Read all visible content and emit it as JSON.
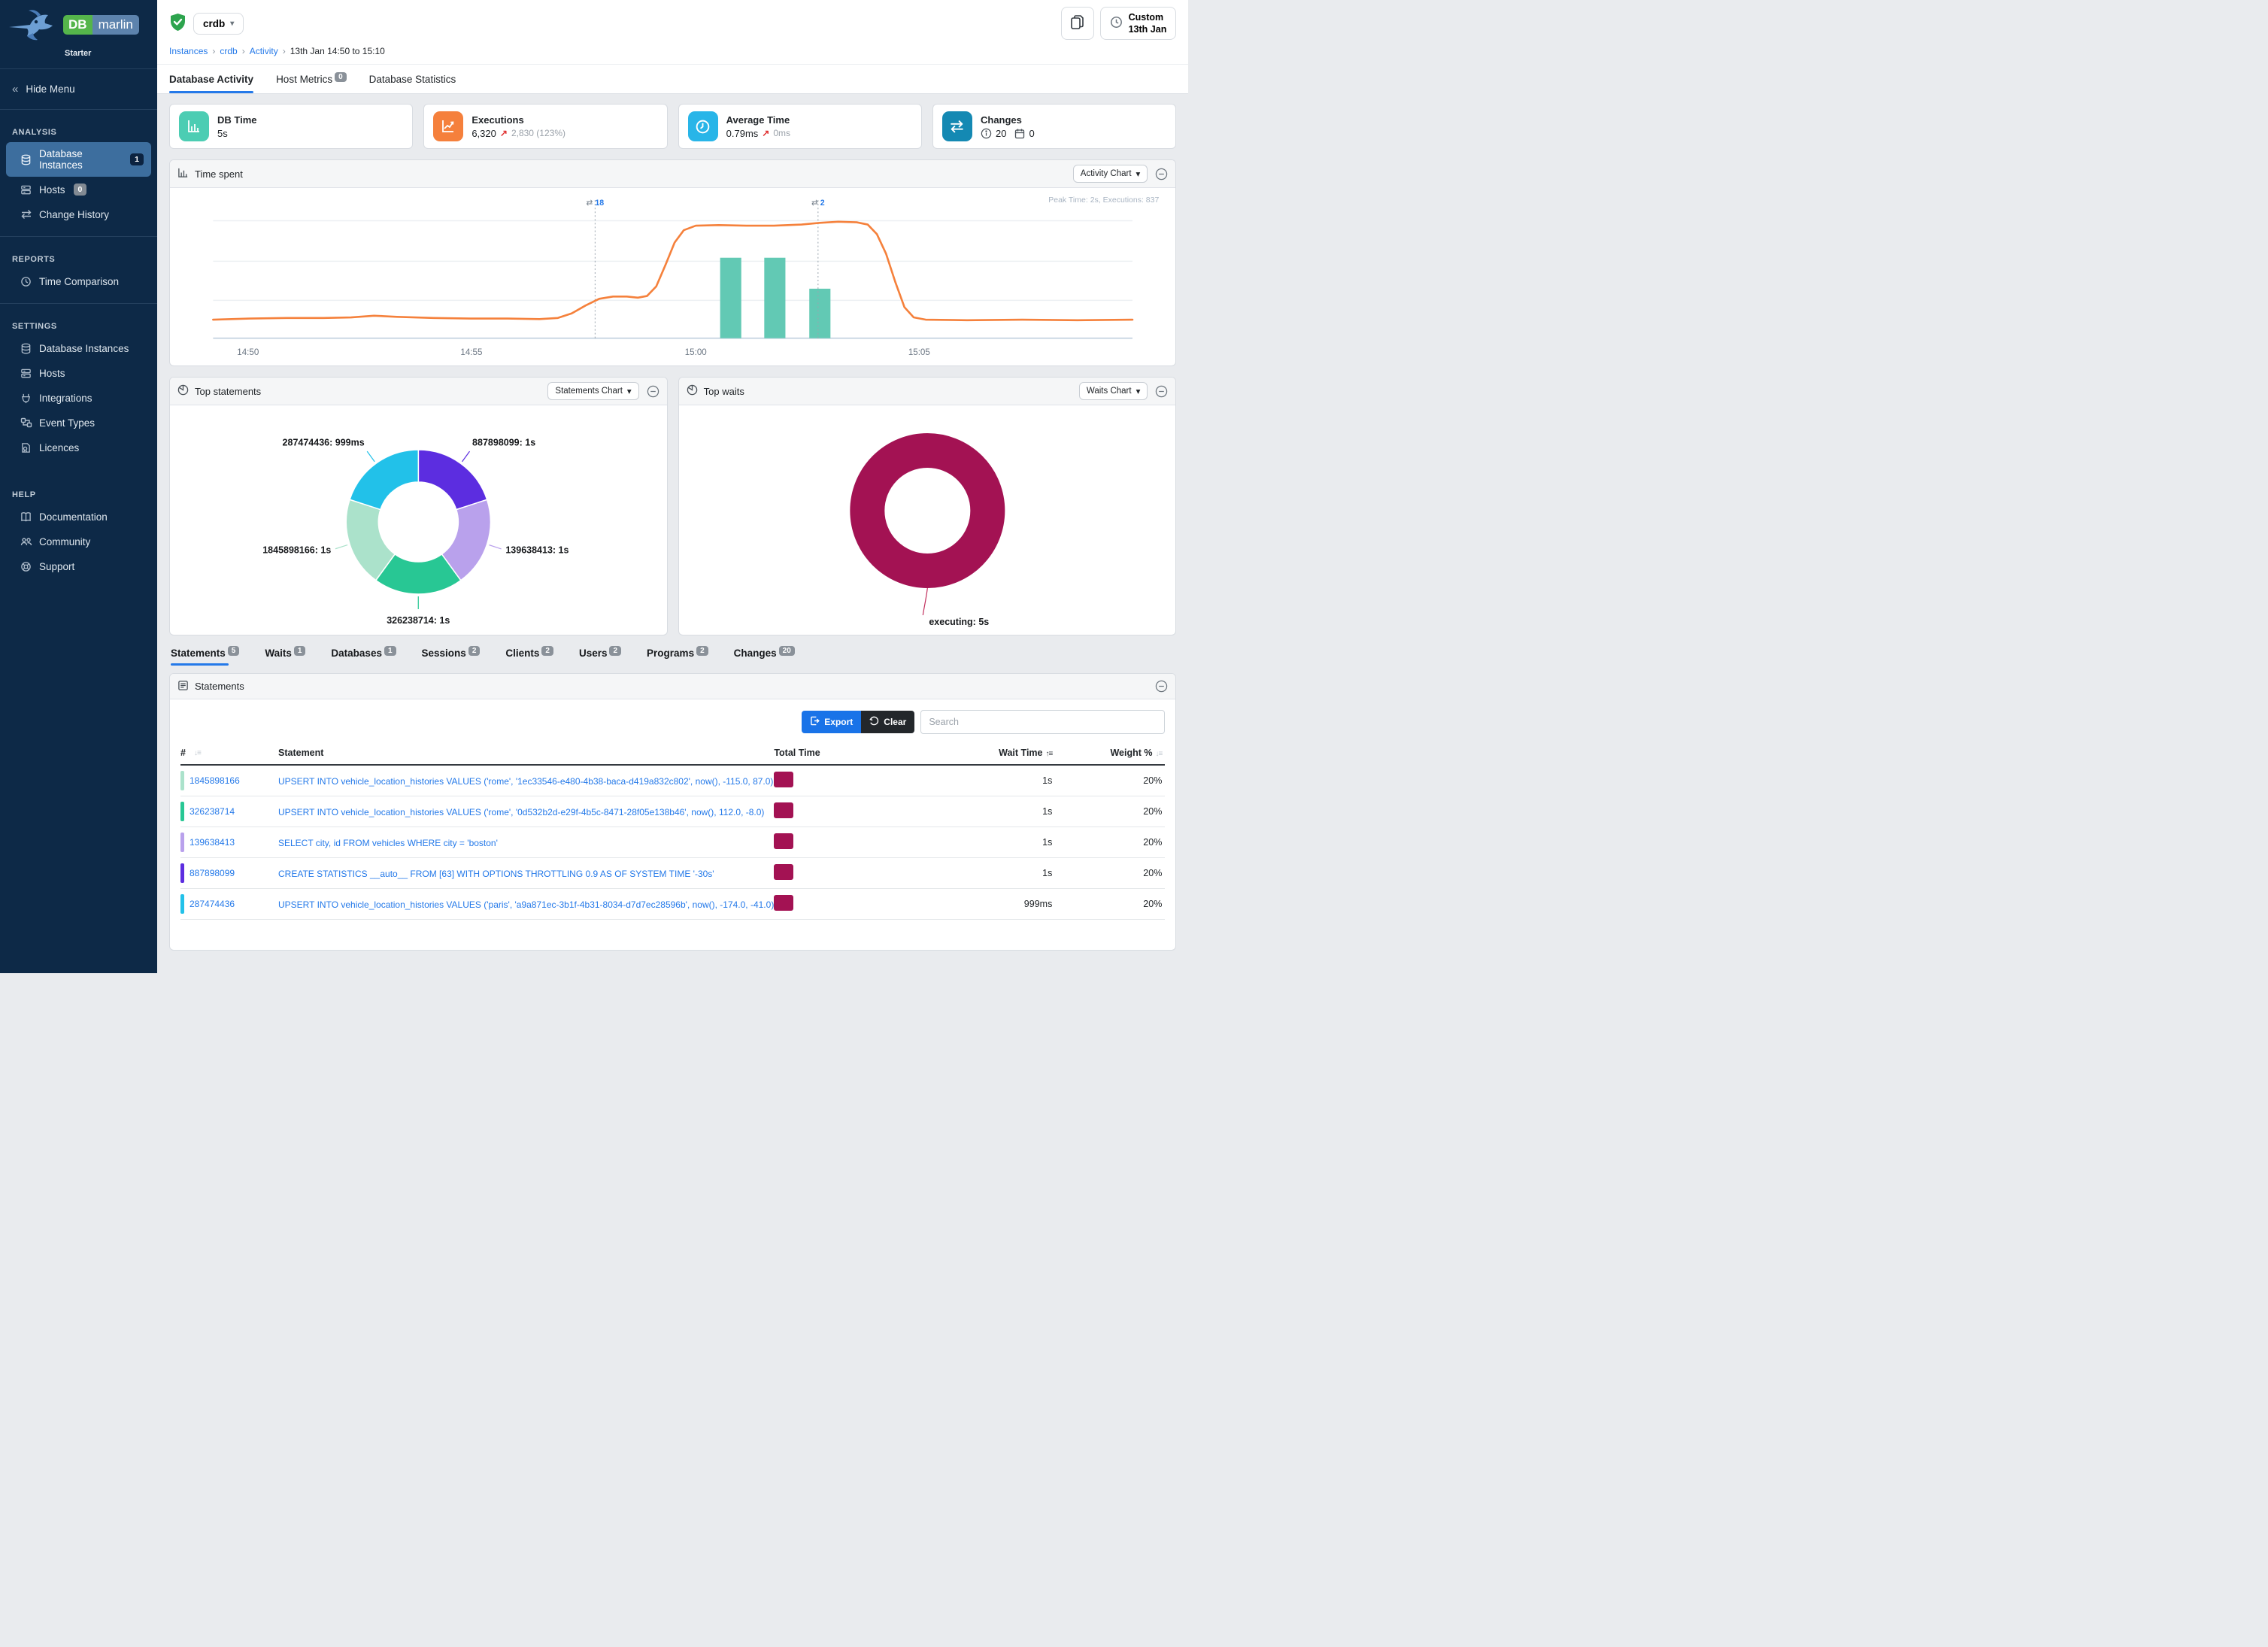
{
  "glyphs": {
    "caret_down": "▾",
    "breadcrumb_sep": "›",
    "up_right_arrow": "↗",
    "double_chevron_left": "«",
    "change_arrows": "⇄",
    "sort_unsorted": "↓≡",
    "sort_asc": "↑≡"
  },
  "sidebar": {
    "logo": {
      "db": "DB",
      "marlin": "marlin",
      "edition": "Starter"
    },
    "hide_menu_label": "Hide Menu",
    "sections": [
      {
        "label": "ANALYSIS",
        "items": [
          {
            "label": "Database Instances",
            "badge": "1",
            "icon": "database-icon",
            "active": true
          },
          {
            "label": "Hosts",
            "badge": "0",
            "icon": "server-icon",
            "active": false
          },
          {
            "label": "Change History",
            "icon": "change-arrows-icon",
            "active": false
          }
        ]
      },
      {
        "label": "REPORTS",
        "items": [
          {
            "label": "Time Comparison",
            "icon": "time-comparison-icon",
            "active": false
          }
        ]
      },
      {
        "label": "SETTINGS",
        "items": [
          {
            "label": "Database Instances",
            "icon": "database-icon",
            "active": false
          },
          {
            "label": "Hosts",
            "icon": "server-icon",
            "active": false
          },
          {
            "label": "Integrations",
            "icon": "plug-icon",
            "active": false
          },
          {
            "label": "Event Types",
            "icon": "event-types-icon",
            "active": false
          },
          {
            "label": "Licences",
            "icon": "licence-icon",
            "active": false
          }
        ]
      },
      {
        "label": "HELP",
        "items": [
          {
            "label": "Documentation",
            "icon": "book-icon",
            "active": false
          },
          {
            "label": "Community",
            "icon": "community-icon",
            "active": false
          },
          {
            "label": "Support",
            "icon": "support-icon",
            "active": false
          }
        ]
      }
    ]
  },
  "header": {
    "instance_name": "crdb",
    "breadcrumb": [
      "Instances",
      "crdb",
      "Activity",
      "13th Jan 14:50 to 15:10"
    ],
    "time_range_button": {
      "line1": "Custom",
      "line2": "13th Jan"
    },
    "tabs": [
      {
        "label": "Database Activity",
        "active": true
      },
      {
        "label": "Host Metrics",
        "badge": "0",
        "active": false
      },
      {
        "label": "Database Statistics",
        "active": false
      }
    ]
  },
  "kpis": [
    {
      "title": "DB Time",
      "value": "5s",
      "icon": "bar-chart-icon",
      "icon_bg": "#4ccdb3"
    },
    {
      "title": "Executions",
      "value": "6,320",
      "delta": "2,830 (123%)",
      "icon": "line-chart-icon",
      "icon_bg": "#f5803c"
    },
    {
      "title": "Average Time",
      "value": "0.79ms",
      "delta": "0ms",
      "icon": "clock-icon",
      "icon_bg": "#28b5e8"
    },
    {
      "title": "Changes",
      "info_count": "20",
      "event_count": "0",
      "icon": "change-arrows-icon",
      "icon_bg": "#1489b3"
    }
  ],
  "panels": {
    "time_spent": {
      "title": "Time spent",
      "chart_selector": "Activity Chart",
      "note": "Peak Time: 2s, Executions: 837"
    },
    "top_statements": {
      "title": "Top statements",
      "chart_selector": "Statements Chart"
    },
    "top_waits": {
      "title": "Top waits",
      "chart_selector": "Waits Chart"
    }
  },
  "chart_data": [
    {
      "type": "line",
      "title": "Time spent",
      "y_max_seconds": 2.4,
      "x_axis": {
        "ticks": [
          "14:50",
          "14:55",
          "15:00",
          "15:05"
        ],
        "tick_positions": [
          0.038,
          0.281,
          0.525,
          0.768
        ]
      },
      "line_series": {
        "name": "DB Time",
        "color": "#f5813c",
        "points": [
          [
            0,
            0.33
          ],
          [
            0.04,
            0.35
          ],
          [
            0.08,
            0.36
          ],
          [
            0.12,
            0.36
          ],
          [
            0.15,
            0.37
          ],
          [
            0.175,
            0.4
          ],
          [
            0.2,
            0.38
          ],
          [
            0.24,
            0.36
          ],
          [
            0.28,
            0.35
          ],
          [
            0.32,
            0.35
          ],
          [
            0.355,
            0.34
          ],
          [
            0.375,
            0.36
          ],
          [
            0.39,
            0.44
          ],
          [
            0.405,
            0.58
          ],
          [
            0.42,
            0.7
          ],
          [
            0.435,
            0.74
          ],
          [
            0.45,
            0.74
          ],
          [
            0.462,
            0.72
          ],
          [
            0.472,
            0.75
          ],
          [
            0.482,
            0.92
          ],
          [
            0.492,
            1.3
          ],
          [
            0.502,
            1.7
          ],
          [
            0.512,
            1.92
          ],
          [
            0.525,
            2.0
          ],
          [
            0.55,
            2.01
          ],
          [
            0.58,
            2.0
          ],
          [
            0.61,
            2.0
          ],
          [
            0.64,
            2.02
          ],
          [
            0.66,
            2.05
          ],
          [
            0.68,
            2.07
          ],
          [
            0.7,
            2.06
          ],
          [
            0.712,
            2.02
          ],
          [
            0.722,
            1.85
          ],
          [
            0.732,
            1.5
          ],
          [
            0.742,
            1.0
          ],
          [
            0.752,
            0.55
          ],
          [
            0.762,
            0.37
          ],
          [
            0.775,
            0.33
          ],
          [
            0.82,
            0.32
          ],
          [
            0.88,
            0.33
          ],
          [
            0.94,
            0.32
          ],
          [
            1,
            0.33
          ]
        ]
      },
      "bar_series": {
        "name": "Executions",
        "color": "#62c9b4",
        "bar_width": 0.023,
        "bars": [
          {
            "x": 0.563,
            "value": 1.43
          },
          {
            "x": 0.611,
            "value": 1.43
          },
          {
            "x": 0.66,
            "value": 0.88
          }
        ]
      },
      "markers": [
        {
          "x": 0.4155,
          "label": "18"
        },
        {
          "x": 0.658,
          "label": "2"
        }
      ],
      "note": "Peak Time: 2s, Executions: 837"
    },
    {
      "type": "pie",
      "title": "Top statements",
      "start_angle_deg": -90,
      "slices": [
        {
          "label": "887898099",
          "value_label": "1s",
          "value_seconds": 1,
          "color": "#5c2de0"
        },
        {
          "label": "139638413",
          "value_label": "1s",
          "value_seconds": 1,
          "color": "#b9a1ec"
        },
        {
          "label": "326238714",
          "value_label": "1s",
          "value_seconds": 1,
          "color": "#28c794"
        },
        {
          "label": "1845898166",
          "value_label": "1s",
          "value_seconds": 1,
          "color": "#abe2cb"
        },
        {
          "label": "287474436",
          "value_label": "999ms",
          "value_seconds": 0.999,
          "color": "#22c1e9"
        }
      ]
    },
    {
      "type": "pie",
      "title": "Top waits",
      "start_angle_deg": -90,
      "slices": [
        {
          "label": "executing",
          "value_label": "5s",
          "value_seconds": 5,
          "color": "#a31253"
        }
      ]
    }
  ],
  "detail_tabs": [
    {
      "label": "Statements",
      "badge": "5",
      "active": true
    },
    {
      "label": "Waits",
      "badge": "1",
      "active": false
    },
    {
      "label": "Databases",
      "badge": "1",
      "active": false
    },
    {
      "label": "Sessions",
      "badge": "2",
      "active": false
    },
    {
      "label": "Clients",
      "badge": "2",
      "active": false
    },
    {
      "label": "Users",
      "badge": "2",
      "active": false
    },
    {
      "label": "Programs",
      "badge": "2",
      "active": false
    },
    {
      "label": "Changes",
      "badge": "20",
      "active": false
    }
  ],
  "statements_panel": {
    "title": "Statements",
    "toolbar": {
      "export_label": "Export",
      "clear_label": "Clear",
      "search_placeholder": "Search"
    },
    "table": {
      "columns": [
        "#",
        "Statement",
        "Total Time",
        "Wait Time",
        "Weight %"
      ],
      "total_time_color": "#a31253",
      "rows": [
        {
          "id": "1845898166",
          "chip_color": "#abe2cb",
          "statement": "UPSERT INTO vehicle_location_histories VALUES ('rome', '1ec33546-e480-4b38-baca-d419a832c802', now(), -115.0, 87.0)",
          "wait_time": "1s",
          "weight": "20%"
        },
        {
          "id": "326238714",
          "chip_color": "#28c794",
          "statement": "UPSERT INTO vehicle_location_histories VALUES ('rome', '0d532b2d-e29f-4b5c-8471-28f05e138b46', now(), 112.0, -8.0)",
          "wait_time": "1s",
          "weight": "20%"
        },
        {
          "id": "139638413",
          "chip_color": "#b9a1ec",
          "statement": "SELECT city, id FROM vehicles WHERE city = 'boston'",
          "wait_time": "1s",
          "weight": "20%"
        },
        {
          "id": "887898099",
          "chip_color": "#5c2de0",
          "statement": "CREATE STATISTICS __auto__ FROM [63] WITH OPTIONS THROTTLING 0.9 AS OF SYSTEM TIME '-30s'",
          "wait_time": "1s",
          "weight": "20%"
        },
        {
          "id": "287474436",
          "chip_color": "#22c1e9",
          "statement": "UPSERT INTO vehicle_location_histories VALUES ('paris', 'a9a871ec-3b1f-4b31-8034-d7d7ec28596b', now(), -174.0, -41.0)",
          "wait_time": "999ms",
          "weight": "20%"
        }
      ]
    }
  }
}
